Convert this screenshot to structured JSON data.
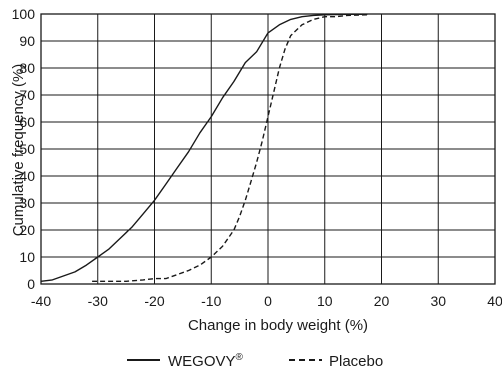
{
  "chart_data": {
    "type": "line",
    "title": "",
    "xlabel": "Change in body weight (%)",
    "ylabel": "Cumulative frequency (%)",
    "xlim": [
      -40,
      40
    ],
    "ylim": [
      0,
      100
    ],
    "xticks": [
      -40,
      -30,
      -20,
      -10,
      0,
      10,
      20,
      30,
      40
    ],
    "yticks": [
      0,
      10,
      20,
      30,
      40,
      50,
      60,
      70,
      80,
      90,
      100
    ],
    "grid": true,
    "legend_position": "bottom",
    "series": [
      {
        "name": "WEGOVY",
        "name_suffix": "®",
        "style": "solid",
        "color": "#1a1a1a",
        "x": [
          -40,
          -38,
          -36,
          -34,
          -32,
          -30,
          -28,
          -26,
          -24,
          -22,
          -20,
          -18,
          -16,
          -14,
          -12,
          -10,
          -8,
          -6,
          -4,
          -2,
          0,
          2,
          4,
          6,
          8,
          10,
          12,
          14,
          16,
          17.5
        ],
        "y": [
          1,
          1.5,
          3,
          4.5,
          7,
          10,
          13,
          17,
          21,
          26,
          31,
          37,
          43,
          49,
          56,
          62,
          69,
          75,
          82,
          86,
          93,
          96,
          98,
          99,
          99.5,
          99.7,
          99.8,
          99.9,
          99.9,
          99.9
        ]
      },
      {
        "name": "Placebo",
        "style": "dashed",
        "color": "#1a1a1a",
        "x": [
          -31,
          -28,
          -25,
          -22,
          -20,
          -18,
          -16,
          -14,
          -12,
          -10,
          -8,
          -6,
          -5,
          -4,
          -3,
          -2,
          -1,
          0,
          1,
          2,
          3,
          4,
          6,
          8,
          10,
          12,
          14,
          17.5
        ],
        "y": [
          1,
          1,
          1,
          1.5,
          2,
          2,
          3.5,
          5,
          7,
          10,
          14,
          20,
          25,
          31,
          38,
          45,
          53,
          62,
          71,
          80,
          87,
          92,
          96,
          98,
          99,
          99,
          99.5,
          99.7
        ]
      }
    ]
  }
}
